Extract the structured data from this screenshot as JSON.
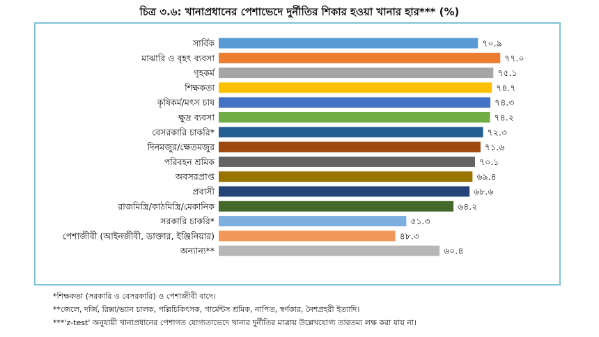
{
  "chart_data": {
    "type": "bar",
    "orientation": "horizontal",
    "title": "চিত্র ৩.৬: খানাপ্রধানের পেশাভেদে দুর্নীতির শিকার হওয়া খানার হার*** (%)",
    "xlim": [
      0,
      100
    ],
    "grid": false,
    "legend": "none",
    "categories": [
      "সার্বিক",
      "মাঝারি ও বৃহৎ ব্যবসা",
      "গৃহকর্ম",
      "শিক্ষকতা",
      "কৃষিকর্ম/মৎস চাষ",
      "ক্ষুদ্র ব্যবসা",
      "বেসরকারি চাকরি*",
      "দিনমজুর/ক্ষেতমজুর",
      "পরিবহন শ্রমিক",
      "অবসরপ্রাপ্ত",
      "প্রবাসী",
      "রাজমিস্ত্রি/কাঠমিস্ত্রি/মেকানিক",
      "সরকারি চাকরি*",
      "পেশাজীবী (আইনজীবী, ডাক্তার, ইঞ্জিনিয়ার)",
      "অন্যান্য**"
    ],
    "values": [
      70.9,
      77.0,
      75.1,
      74.7,
      74.3,
      74.2,
      72.3,
      71.6,
      70.1,
      69.4,
      68.6,
      64.2,
      51.3,
      48.3,
      60.4
    ],
    "value_labels": [
      "৭০.৯",
      "৭৭.০",
      "৭৫.১",
      "৭৪.৭",
      "৭৪.৩",
      "৭৪.২",
      "৭২.৩",
      "৭১.৬",
      "৭০.১",
      "৬৯.৪",
      "৬৮.৬",
      "৬৪.২",
      "৫১.৩",
      "৪৮.৩",
      "৬০.৪"
    ],
    "colors": [
      "#5b9bd5",
      "#ed7d31",
      "#a5a5a5",
      "#ffc000",
      "#4472c4",
      "#70ad47",
      "#255e91",
      "#9e480e",
      "#636363",
      "#997300",
      "#264478",
      "#43682b",
      "#7cafdd",
      "#f1975a",
      "#b7b7b7"
    ]
  },
  "notes": [
    "*শিক্ষকতা (সরকারি ও বেসরকারি) ও পেশাজীবী বাদে।",
    "**জেলে, দর্জি, রিক্সা/ভ্যান চালক, পল্লিচিকিৎসক, গার্মেন্টস শ্রমিক, নাপিত, স্বর্ণকার, নৈশপ্রহরী ইত্যাদি।",
    "***'z-test' অনুযায়ী খানাপ্রধানের পেশাগত যোগ্যতাভেদে খানার দুর্নীতির মাত্রায় উল্লেখযোগ্য তারতম্য লক্ষ করা যায় না।"
  ]
}
